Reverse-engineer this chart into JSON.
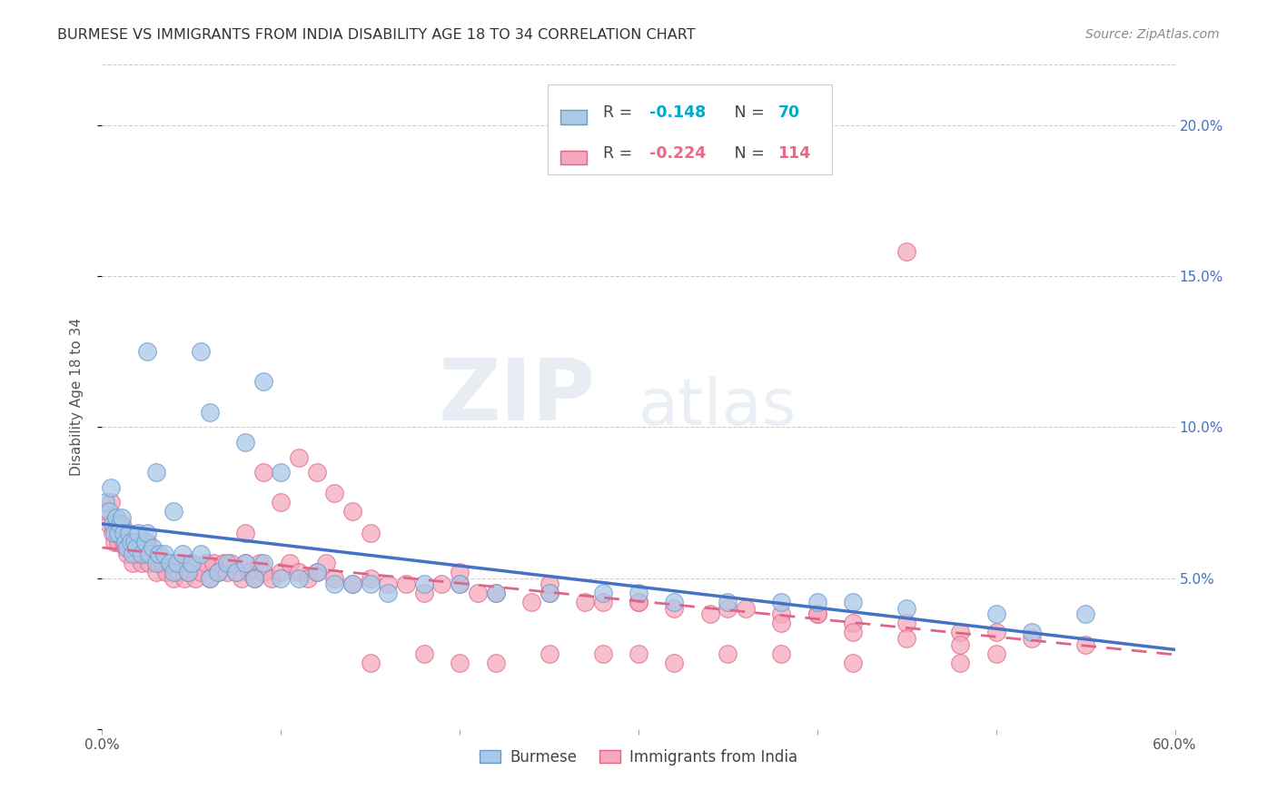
{
  "title": "BURMESE VS IMMIGRANTS FROM INDIA DISABILITY AGE 18 TO 34 CORRELATION CHART",
  "source": "Source: ZipAtlas.com",
  "ylabel": "Disability Age 18 to 34",
  "xlim": [
    0.0,
    0.6
  ],
  "ylim": [
    0.0,
    0.22
  ],
  "xticks": [
    0.0,
    0.1,
    0.2,
    0.3,
    0.4,
    0.5,
    0.6
  ],
  "yticks": [
    0.0,
    0.05,
    0.1,
    0.15,
    0.2
  ],
  "xticklabels": [
    "0.0%",
    "",
    "",
    "",
    "",
    "",
    "60.0%"
  ],
  "yticklabels_right": [
    "",
    "5.0%",
    "10.0%",
    "15.0%",
    "20.0%"
  ],
  "legend_burmese": "Burmese",
  "legend_india": "Immigrants from India",
  "burmese_R": "-0.148",
  "burmese_N": "70",
  "india_R": "-0.224",
  "india_N": "114",
  "burmese_color": "#aac8e8",
  "india_color": "#f5a8bc",
  "burmese_edge_color": "#6699cc",
  "india_edge_color": "#dd6688",
  "burmese_line_color": "#4472c4",
  "india_line_color": "#dd6688",
  "watermark_zip": "ZIP",
  "watermark_atlas": "atlas",
  "background_color": "#ffffff",
  "grid_color": "#cccccc",
  "title_color": "#333333",
  "tick_label_color": "#4472c4",
  "source_color": "#888888",
  "burmese_x": [
    0.002,
    0.004,
    0.005,
    0.006,
    0.007,
    0.008,
    0.009,
    0.01,
    0.011,
    0.012,
    0.013,
    0.014,
    0.015,
    0.016,
    0.017,
    0.018,
    0.019,
    0.02,
    0.022,
    0.024,
    0.025,
    0.026,
    0.028,
    0.03,
    0.032,
    0.035,
    0.038,
    0.04,
    0.042,
    0.045,
    0.048,
    0.05,
    0.055,
    0.06,
    0.065,
    0.07,
    0.075,
    0.08,
    0.085,
    0.09,
    0.1,
    0.11,
    0.12,
    0.13,
    0.14,
    0.15,
    0.16,
    0.18,
    0.2,
    0.22,
    0.25,
    0.28,
    0.3,
    0.32,
    0.35,
    0.38,
    0.4,
    0.42,
    0.45,
    0.5,
    0.08,
    0.09,
    0.1,
    0.055,
    0.06,
    0.04,
    0.03,
    0.025,
    0.55,
    0.52
  ],
  "burmese_y": [
    0.075,
    0.072,
    0.08,
    0.068,
    0.065,
    0.07,
    0.065,
    0.068,
    0.07,
    0.065,
    0.062,
    0.06,
    0.065,
    0.062,
    0.058,
    0.062,
    0.06,
    0.065,
    0.058,
    0.062,
    0.065,
    0.058,
    0.06,
    0.055,
    0.058,
    0.058,
    0.055,
    0.052,
    0.055,
    0.058,
    0.052,
    0.055,
    0.058,
    0.05,
    0.052,
    0.055,
    0.052,
    0.055,
    0.05,
    0.055,
    0.05,
    0.05,
    0.052,
    0.048,
    0.048,
    0.048,
    0.045,
    0.048,
    0.048,
    0.045,
    0.045,
    0.045,
    0.045,
    0.042,
    0.042,
    0.042,
    0.042,
    0.042,
    0.04,
    0.038,
    0.095,
    0.115,
    0.085,
    0.125,
    0.105,
    0.072,
    0.085,
    0.125,
    0.038,
    0.032
  ],
  "india_x": [
    0.002,
    0.004,
    0.005,
    0.006,
    0.007,
    0.008,
    0.009,
    0.01,
    0.011,
    0.012,
    0.013,
    0.014,
    0.015,
    0.016,
    0.017,
    0.018,
    0.019,
    0.02,
    0.022,
    0.024,
    0.025,
    0.026,
    0.028,
    0.03,
    0.032,
    0.034,
    0.036,
    0.038,
    0.04,
    0.042,
    0.044,
    0.046,
    0.048,
    0.05,
    0.052,
    0.055,
    0.058,
    0.06,
    0.062,
    0.065,
    0.068,
    0.07,
    0.072,
    0.075,
    0.078,
    0.08,
    0.082,
    0.085,
    0.088,
    0.09,
    0.095,
    0.1,
    0.105,
    0.11,
    0.115,
    0.12,
    0.125,
    0.13,
    0.14,
    0.15,
    0.16,
    0.17,
    0.18,
    0.19,
    0.2,
    0.21,
    0.22,
    0.24,
    0.25,
    0.27,
    0.28,
    0.3,
    0.32,
    0.34,
    0.36,
    0.38,
    0.4,
    0.42,
    0.45,
    0.48,
    0.5,
    0.52,
    0.55,
    0.08,
    0.09,
    0.1,
    0.11,
    0.12,
    0.13,
    0.14,
    0.15,
    0.2,
    0.25,
    0.3,
    0.35,
    0.38,
    0.4,
    0.42,
    0.45,
    0.48,
    0.3,
    0.35,
    0.25,
    0.2,
    0.15,
    0.18,
    0.22,
    0.28,
    0.32,
    0.38,
    0.42,
    0.48,
    0.5,
    0.45
  ],
  "india_y": [
    0.072,
    0.068,
    0.075,
    0.065,
    0.062,
    0.068,
    0.062,
    0.065,
    0.068,
    0.062,
    0.06,
    0.058,
    0.062,
    0.06,
    0.055,
    0.06,
    0.058,
    0.062,
    0.055,
    0.058,
    0.062,
    0.055,
    0.058,
    0.052,
    0.055,
    0.055,
    0.052,
    0.055,
    0.05,
    0.052,
    0.055,
    0.05,
    0.052,
    0.055,
    0.05,
    0.052,
    0.055,
    0.05,
    0.055,
    0.052,
    0.055,
    0.052,
    0.055,
    0.052,
    0.05,
    0.055,
    0.052,
    0.05,
    0.055,
    0.052,
    0.05,
    0.052,
    0.055,
    0.052,
    0.05,
    0.052,
    0.055,
    0.05,
    0.048,
    0.05,
    0.048,
    0.048,
    0.045,
    0.048,
    0.048,
    0.045,
    0.045,
    0.042,
    0.045,
    0.042,
    0.042,
    0.042,
    0.04,
    0.038,
    0.04,
    0.038,
    0.038,
    0.035,
    0.035,
    0.032,
    0.032,
    0.03,
    0.028,
    0.065,
    0.085,
    0.075,
    0.09,
    0.085,
    0.078,
    0.072,
    0.065,
    0.052,
    0.048,
    0.042,
    0.04,
    0.035,
    0.038,
    0.032,
    0.03,
    0.028,
    0.025,
    0.025,
    0.025,
    0.022,
    0.022,
    0.025,
    0.022,
    0.025,
    0.022,
    0.025,
    0.022,
    0.022,
    0.025,
    0.158
  ]
}
